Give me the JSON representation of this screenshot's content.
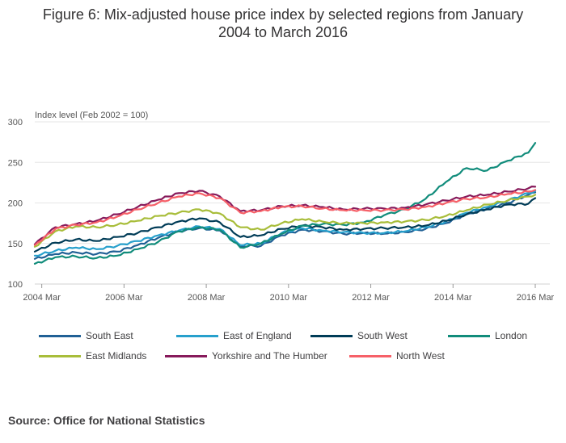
{
  "title_line1": "Figure 6: Mix-adjusted house price index by selected regions from January",
  "title_line2": "2004 to March 2016",
  "source": "Source: Office for National Statistics",
  "chart_data": {
    "type": "line",
    "title": "Figure 6: Mix-adjusted house price index by selected regions from January 2004 to March 2016",
    "ylabel": "Index level (Feb 2002 = 100)",
    "ylim": [
      100,
      300
    ],
    "yticks": [
      100,
      150,
      200,
      250,
      300
    ],
    "xlim": [
      2004.0,
      2016.17
    ],
    "xticks": [
      {
        "value": 2004.17,
        "label": "2004 Mar"
      },
      {
        "value": 2006.17,
        "label": "2006 Mar"
      },
      {
        "value": 2008.17,
        "label": "2008 Mar"
      },
      {
        "value": 2010.17,
        "label": "2010 Mar"
      },
      {
        "value": 2012.17,
        "label": "2012 Mar"
      },
      {
        "value": 2014.17,
        "label": "2014 Mar"
      },
      {
        "value": 2016.17,
        "label": "2016 Mar"
      }
    ],
    "grid": true,
    "legend_position": "bottom",
    "series": [
      {
        "name": "South East",
        "color": "#206095",
        "x": [
          2004.0,
          2004.5,
          2005.0,
          2005.5,
          2006.0,
          2006.5,
          2007.0,
          2007.5,
          2008.0,
          2008.5,
          2009.0,
          2009.5,
          2010.0,
          2010.5,
          2011.0,
          2011.5,
          2012.0,
          2012.5,
          2013.0,
          2013.5,
          2014.0,
          2014.5,
          2015.0,
          2015.5,
          2016.0,
          2016.17
        ],
        "y": [
          131,
          137,
          139,
          137,
          140,
          148,
          157,
          165,
          169,
          166,
          147,
          147,
          160,
          167,
          165,
          162,
          163,
          162,
          164,
          168,
          175,
          186,
          193,
          200,
          210,
          213
        ]
      },
      {
        "name": "East of England",
        "color": "#27a0cc",
        "x": [
          2004.0,
          2004.5,
          2005.0,
          2005.5,
          2006.0,
          2006.5,
          2007.0,
          2007.5,
          2008.0,
          2008.5,
          2009.0,
          2009.5,
          2010.0,
          2010.5,
          2011.0,
          2011.5,
          2012.0,
          2012.5,
          2013.0,
          2013.5,
          2014.0,
          2014.5,
          2015.0,
          2015.5,
          2016.0,
          2016.17
        ],
        "y": [
          135,
          141,
          145,
          143,
          147,
          153,
          160,
          166,
          171,
          168,
          148,
          150,
          163,
          169,
          166,
          164,
          163,
          163,
          165,
          170,
          177,
          188,
          195,
          203,
          212,
          215
        ]
      },
      {
        "name": "South West",
        "color": "#003c57",
        "x": [
          2004.0,
          2004.5,
          2005.0,
          2005.5,
          2006.0,
          2006.5,
          2007.0,
          2007.5,
          2008.0,
          2008.5,
          2009.0,
          2009.5,
          2010.0,
          2010.5,
          2011.0,
          2011.5,
          2012.0,
          2012.5,
          2013.0,
          2013.5,
          2014.0,
          2014.5,
          2015.0,
          2015.5,
          2016.0,
          2016.17
        ],
        "y": [
          140,
          151,
          155,
          153,
          158,
          163,
          170,
          177,
          181,
          176,
          158,
          160,
          168,
          172,
          170,
          167,
          168,
          169,
          170,
          172,
          178,
          186,
          192,
          198,
          199,
          206
        ]
      },
      {
        "name": "London",
        "color": "#118c7b",
        "x": [
          2004.0,
          2004.5,
          2005.0,
          2005.5,
          2006.0,
          2006.5,
          2007.0,
          2007.5,
          2008.0,
          2008.5,
          2009.0,
          2009.5,
          2010.0,
          2010.5,
          2011.0,
          2011.5,
          2012.0,
          2012.5,
          2013.0,
          2013.5,
          2014.0,
          2014.5,
          2015.0,
          2015.5,
          2016.0,
          2016.17
        ],
        "y": [
          125,
          133,
          134,
          132,
          135,
          143,
          152,
          165,
          170,
          167,
          145,
          150,
          162,
          172,
          174,
          173,
          176,
          185,
          192,
          205,
          226,
          243,
          240,
          252,
          262,
          274
        ]
      },
      {
        "name": "East Midlands",
        "color": "#a8bd3a",
        "x": [
          2004.0,
          2004.5,
          2005.0,
          2005.5,
          2006.0,
          2006.5,
          2007.0,
          2007.5,
          2008.0,
          2008.5,
          2009.0,
          2009.5,
          2010.0,
          2010.5,
          2011.0,
          2011.5,
          2012.0,
          2012.5,
          2013.0,
          2013.5,
          2014.0,
          2014.5,
          2015.0,
          2015.5,
          2016.0,
          2016.17
        ],
        "y": [
          146,
          165,
          171,
          170,
          173,
          178,
          184,
          188,
          192,
          187,
          170,
          167,
          175,
          180,
          177,
          175,
          175,
          176,
          177,
          179,
          184,
          191,
          198,
          203,
          208,
          210
        ]
      },
      {
        "name": "Yorkshire and The Humber",
        "color": "#871a5b",
        "x": [
          2004.0,
          2004.5,
          2005.0,
          2005.5,
          2006.0,
          2006.5,
          2007.0,
          2007.5,
          2008.0,
          2008.5,
          2009.0,
          2009.5,
          2010.0,
          2010.5,
          2011.0,
          2011.5,
          2012.0,
          2012.5,
          2013.0,
          2013.5,
          2014.0,
          2014.5,
          2015.0,
          2015.5,
          2016.0,
          2016.17
        ],
        "y": [
          149,
          170,
          174,
          178,
          186,
          195,
          204,
          212,
          215,
          208,
          190,
          191,
          196,
          197,
          195,
          192,
          193,
          193,
          194,
          198,
          203,
          208,
          210,
          214,
          218,
          220
        ]
      },
      {
        "name": "North West",
        "color": "#f66068",
        "x": [
          2004.0,
          2004.5,
          2005.0,
          2005.5,
          2006.0,
          2006.5,
          2007.0,
          2007.5,
          2008.0,
          2008.5,
          2009.0,
          2009.5,
          2010.0,
          2010.5,
          2011.0,
          2011.5,
          2012.0,
          2012.5,
          2013.0,
          2013.5,
          2014.0,
          2014.5,
          2015.0,
          2015.5,
          2016.0,
          2016.17
        ],
        "y": [
          148,
          168,
          173,
          176,
          183,
          192,
          200,
          208,
          212,
          206,
          188,
          190,
          195,
          196,
          193,
          191,
          191,
          191,
          192,
          195,
          200,
          205,
          207,
          211,
          214,
          216
        ]
      }
    ]
  }
}
